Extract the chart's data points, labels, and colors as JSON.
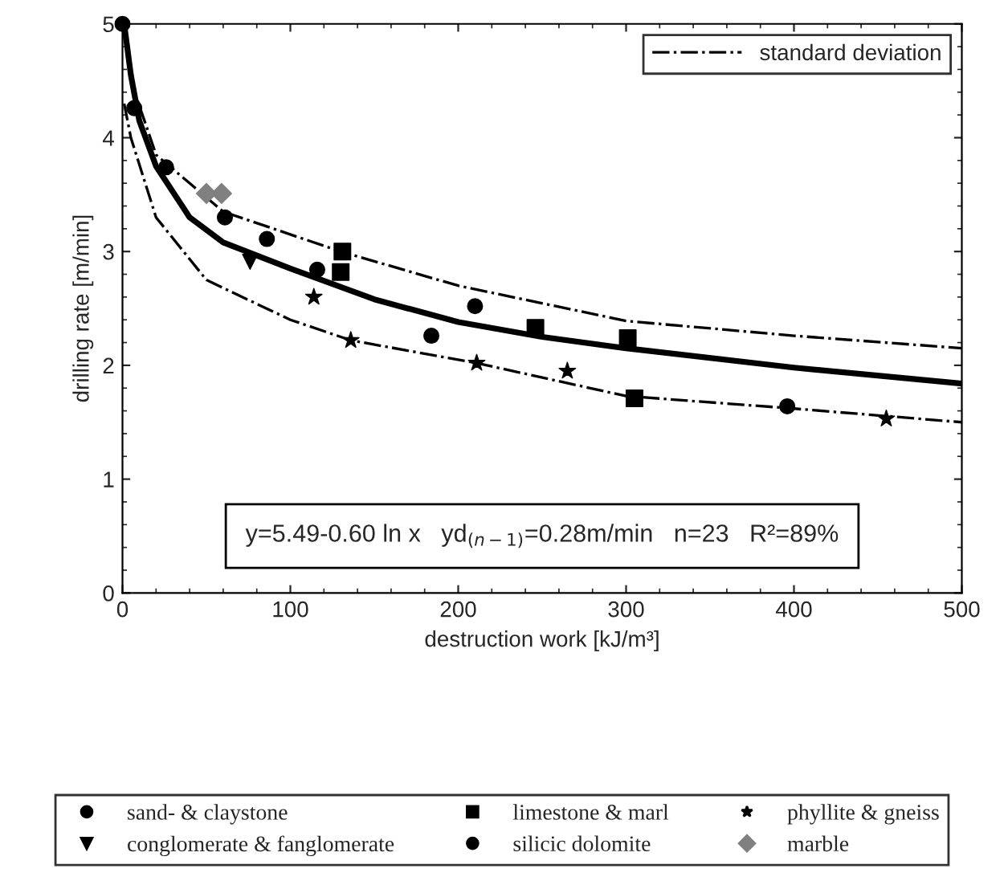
{
  "chart_data": {
    "type": "scatter",
    "xlabel": "destruction work [kJ/m³]",
    "ylabel": "drilling rate [m/min]",
    "xlim": [
      0,
      500
    ],
    "xticks": [
      0,
      100,
      200,
      300,
      400,
      500
    ],
    "ylim": [
      0,
      5
    ],
    "yticks": [
      0,
      1,
      2,
      3,
      4,
      5
    ],
    "grid": false,
    "legend": "bottom",
    "annotations": [
      "y=5.49-0.60 ln x   yd$_{(n−1)}$=0.28m/min   n=23   R²=89%"
    ],
    "series": [
      {
        "type": "line",
        "color": "#000000",
        "line_style": "solid",
        "x": [
          1,
          5,
          10,
          20,
          40,
          60,
          100,
          150,
          200,
          250,
          300,
          400,
          500
        ],
        "values": [
          5.0,
          4.55,
          4.15,
          3.75,
          3.3,
          3.08,
          2.85,
          2.58,
          2.38,
          2.25,
          2.15,
          1.98,
          1.84
        ]
      },
      {
        "type": "line",
        "name": "standard deviation",
        "color": "#000000",
        "line_style": "dashdot",
        "x": [
          1,
          5,
          20,
          60,
          130,
          200,
          300,
          400,
          500
        ],
        "values": [
          5.0,
          4.5,
          3.85,
          3.35,
          3.0,
          2.7,
          2.39,
          2.26,
          2.15
        ]
      },
      {
        "type": "line",
        "color": "#000000",
        "line_style": "dashdot",
        "x": [
          1,
          5,
          20,
          50,
          100,
          136,
          211,
          300,
          400,
          500
        ],
        "values": [
          4.3,
          4.0,
          3.3,
          2.75,
          2.4,
          2.22,
          2.02,
          1.73,
          1.62,
          1.5
        ]
      },
      {
        "name": "sand- & claystone",
        "marker": "circle",
        "color": "#000000",
        "x": [
          0,
          7,
          26,
          61,
          86,
          116,
          184,
          396
        ],
        "values": [
          5.0,
          4.26,
          3.74,
          3.3,
          3.11,
          2.84,
          2.26,
          1.64
        ]
      },
      {
        "name": "limestone & marl",
        "marker": "square",
        "color": "#000000",
        "x": [
          131,
          130,
          246,
          301,
          305
        ],
        "values": [
          3.0,
          2.82,
          2.33,
          2.24,
          1.71
        ]
      },
      {
        "name": "phyllite & gneiss",
        "marker": "star",
        "color": "#000000",
        "x": [
          114,
          136,
          211,
          265,
          455
        ],
        "values": [
          2.6,
          2.22,
          2.02,
          1.95,
          1.53
        ]
      },
      {
        "name": "conglomerate & fanglomerate",
        "marker": "triangle",
        "color": "#000000",
        "x": [
          76
        ],
        "values": [
          2.91
        ]
      },
      {
        "name": "silicic dolomite",
        "marker": "circle",
        "color": "#000000",
        "x": [
          210
        ],
        "values": [
          2.52
        ]
      },
      {
        "name": "marble",
        "marker": "diamond",
        "color": "#808080",
        "x": [
          50,
          59
        ],
        "values": [
          3.51,
          3.51
        ]
      }
    ]
  }
}
